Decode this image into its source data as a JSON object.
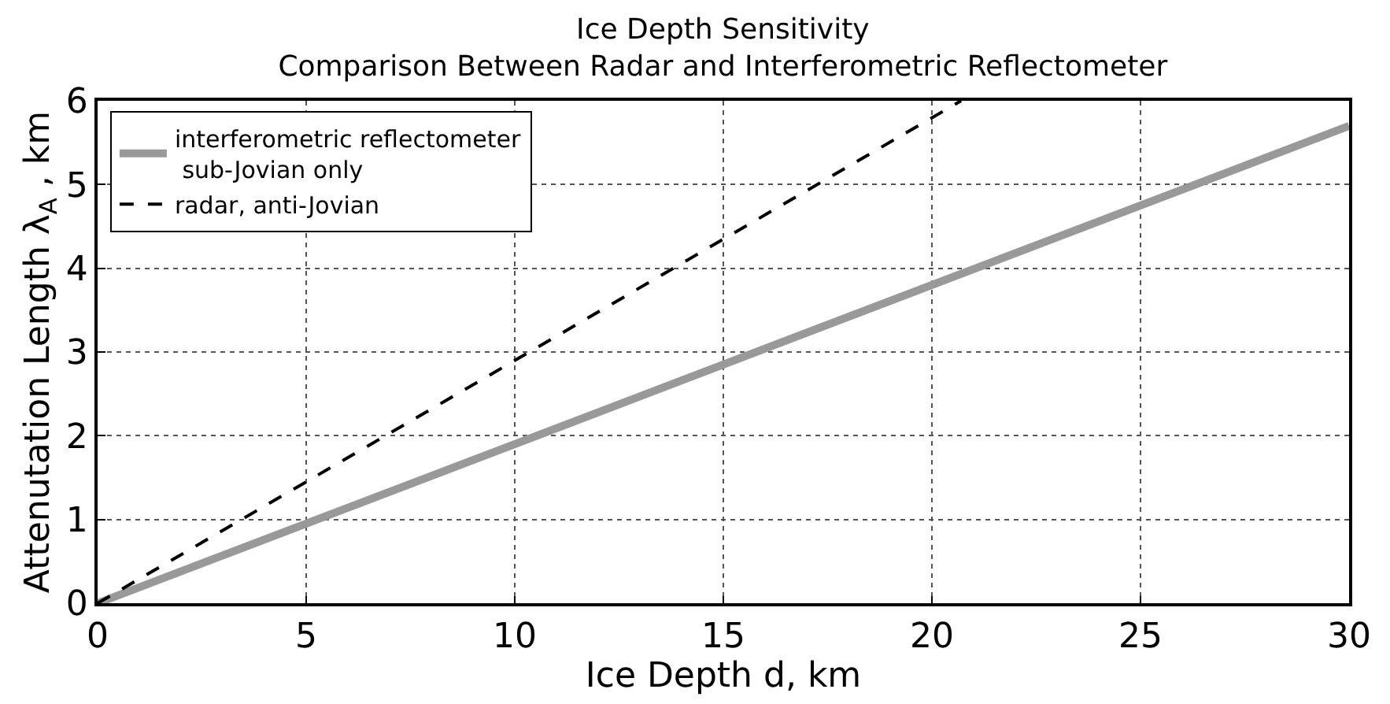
{
  "chart_data": {
    "type": "line",
    "title": "Ice Depth Sensitivity\nComparison Between Radar and Interferometric Reflectometer",
    "xlabel": "Ice Depth d, km",
    "ylabel": "Attenutation Length λ$_{A}$ , km",
    "series": [
      {
        "name": "interferometric reflectometer\n sub-Jovian only",
        "color": "#999999",
        "x": [
          0,
          30
        ],
        "values": [
          0,
          5.7
        ],
        "line_style": "solid"
      },
      {
        "name": "radar, anti-Jovian",
        "color": "#000000",
        "x": [
          0,
          20.7
        ],
        "values": [
          0,
          6
        ],
        "line_style": "dashed"
      }
    ],
    "xlim": [
      0,
      30
    ],
    "xticks": [
      0,
      5,
      10,
      15,
      20,
      25,
      30
    ],
    "ylim": [
      0,
      6
    ],
    "yticks": [
      0,
      1,
      2,
      3,
      4,
      5,
      6
    ],
    "grid": true,
    "legend": "top left",
    "marker": "none"
  }
}
